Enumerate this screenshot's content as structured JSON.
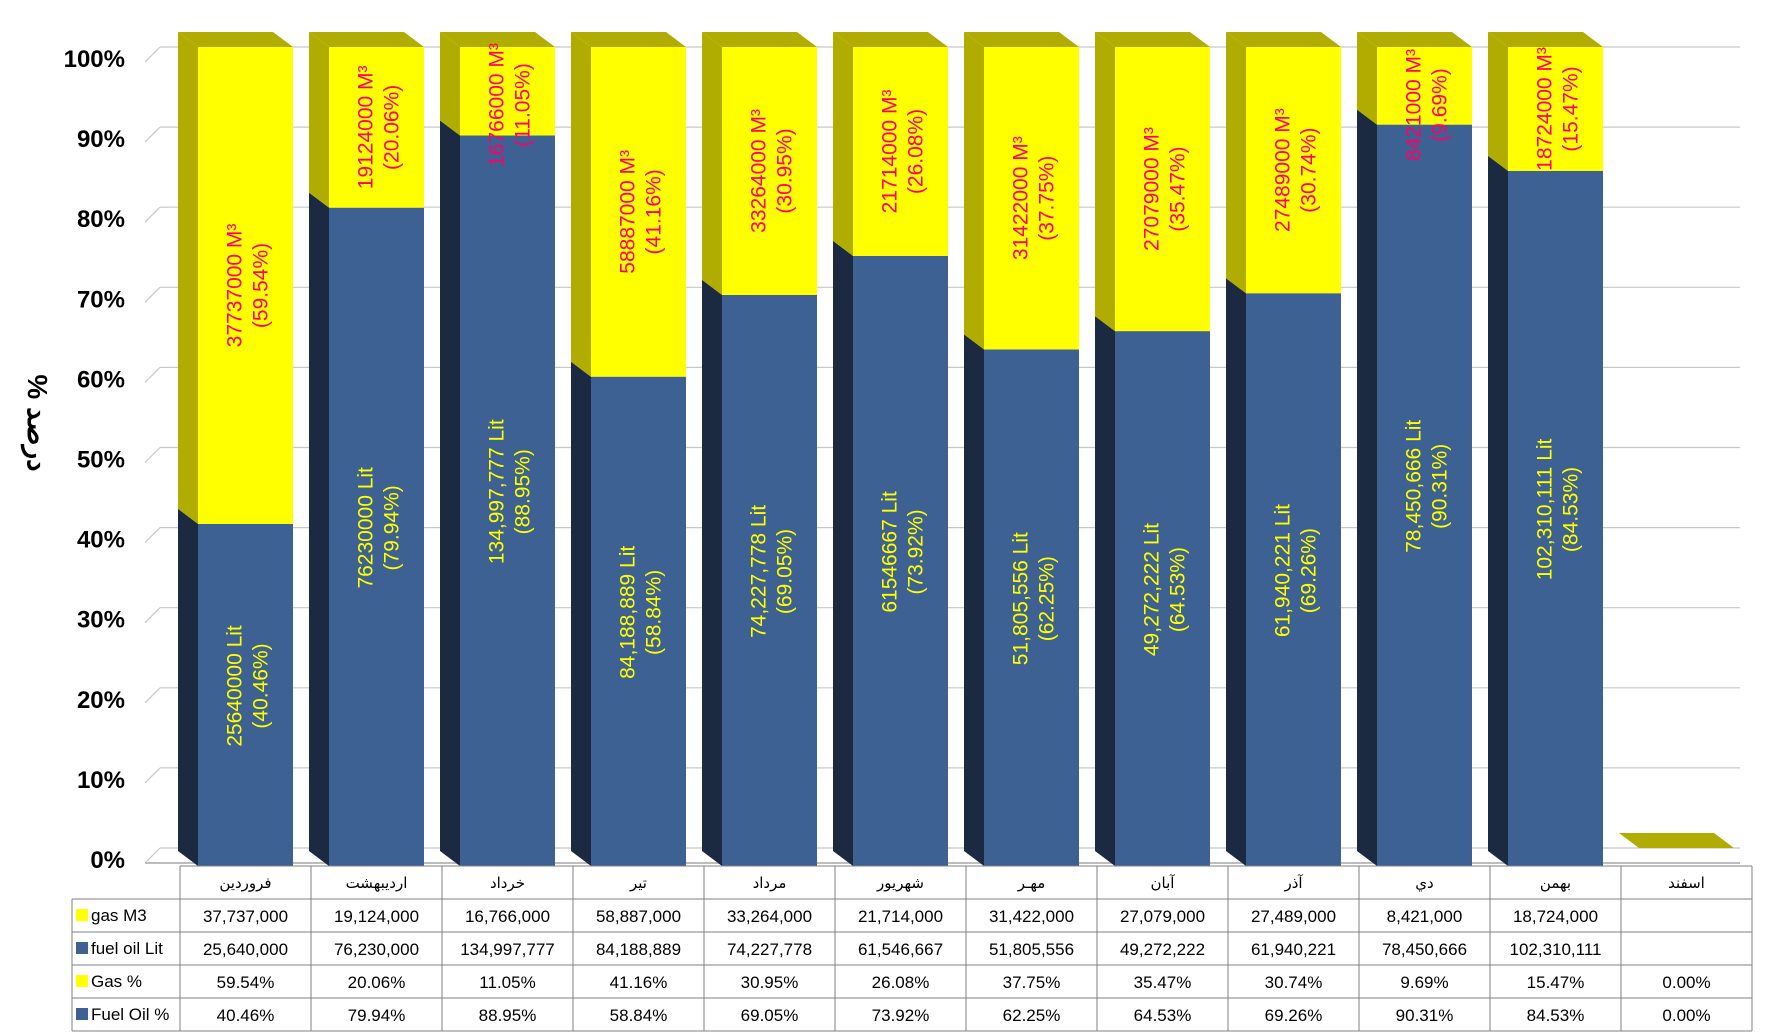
{
  "chart_data": {
    "type": "bar",
    "stacked": true,
    "normalized": true,
    "categories": [
      "فروردین",
      "اردیبهشت",
      "خرداد",
      "تیر",
      "مرداد",
      "شهریور",
      "مهـر",
      "آبان",
      "آذر",
      "دي",
      "بهمن",
      "اسفند"
    ],
    "ylabel": "% درصد",
    "ylim": [
      0,
      100
    ],
    "yticks": [
      "0%",
      "10%",
      "20%",
      "30%",
      "40%",
      "50%",
      "60%",
      "70%",
      "80%",
      "90%",
      "100%"
    ],
    "series": [
      {
        "name": "Fuel Oil %",
        "color": "#3d6192",
        "values": [
          40.46,
          79.94,
          88.95,
          58.84,
          69.05,
          73.92,
          62.25,
          64.53,
          69.26,
          90.31,
          84.53,
          0
        ]
      },
      {
        "name": "Gas %",
        "color": "#ffff00",
        "values": [
          59.54,
          20.06,
          11.05,
          41.16,
          30.95,
          26.08,
          37.75,
          35.47,
          30.74,
          9.69,
          15.47,
          0
        ]
      }
    ],
    "bar_labels": {
      "fuel": [
        [
          "25640000 Lit",
          "(40.46%)"
        ],
        [
          "76230000 Lit",
          "(79.94%)"
        ],
        [
          "134,997,777 Lit",
          "(88.95%)"
        ],
        [
          "84,188,889 Lit",
          "(58.84%)"
        ],
        [
          "74,227,778 Lit",
          "(69.05%)"
        ],
        [
          "61546667 Lit",
          "(73.92%)"
        ],
        [
          "51,805,556 Lit",
          "(62.25%)"
        ],
        [
          "49,272,222 Lit",
          "(64.53%)"
        ],
        [
          "61,940,221 Lit",
          "(69.26%)"
        ],
        [
          "78,450,666 Lit",
          "(90.31%)"
        ],
        [
          "102,310,111 Lit",
          "(84.53%)"
        ]
      ],
      "gas": [
        [
          "37737000 M³",
          "(59.54%)"
        ],
        [
          "19124000 M³",
          "(20.06%)"
        ],
        [
          "16766000 M³",
          "(11.05%)"
        ],
        [
          "58887000 M³",
          "(41.16%)"
        ],
        [
          "33264000 M³",
          "(30.95%)"
        ],
        [
          "21714000 M³",
          "(26.08%)"
        ],
        [
          "31422000 M³",
          "(37.75%)"
        ],
        [
          "27079000 M³",
          "(35.47%)"
        ],
        [
          "27489000 M³",
          "(30.74%)"
        ],
        [
          "8421000 M³",
          "(9.69%)"
        ],
        [
          "18724000 M³",
          "(15.47%)"
        ]
      ]
    },
    "table": {
      "rows": [
        {
          "label": "gas M3",
          "color": "#ffff00",
          "values": [
            "37,737,000",
            "19,124,000",
            "16,766,000",
            "58,887,000",
            "33,264,000",
            "21,714,000",
            "31,422,000",
            "27,079,000",
            "27,489,000",
            "8,421,000",
            "18,724,000",
            ""
          ]
        },
        {
          "label": "fuel oil Lit",
          "color": "#3d6192",
          "values": [
            "25,640,000",
            "76,230,000",
            "134,997,777",
            "84,188,889",
            "74,227,778",
            "61,546,667",
            "51,805,556",
            "49,272,222",
            "61,940,221",
            "78,450,666",
            "102,310,111",
            ""
          ]
        },
        {
          "label": "Gas %",
          "color": "#ffff00",
          "values": [
            "59.54%",
            "20.06%",
            "11.05%",
            "41.16%",
            "30.95%",
            "26.08%",
            "37.75%",
            "35.47%",
            "30.74%",
            "9.69%",
            "15.47%",
            "0.00%"
          ]
        },
        {
          "label": "Fuel Oil %",
          "color": "#3d6192",
          "values": [
            "40.46%",
            "79.94%",
            "88.95%",
            "58.84%",
            "69.05%",
            "73.92%",
            "62.25%",
            "64.53%",
            "69.26%",
            "90.31%",
            "84.53%",
            "0.00%"
          ]
        }
      ]
    },
    "colors": {
      "fuel_front": "#3d6192",
      "fuel_side": "#1b2a40",
      "gas_front": "#ffff00",
      "gas_side": "#b0ad00",
      "gas_label": "#ff0066",
      "fuel_label": "#ffff00"
    }
  }
}
